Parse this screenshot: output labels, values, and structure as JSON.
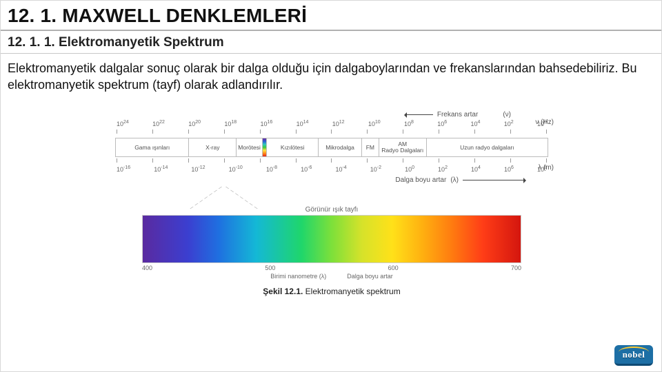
{
  "heading1": "12. 1. MAXWELL DENKLEMLERİ",
  "heading2": "12. 1. 1. Elektromanyetik Spektrum",
  "paragraph": "Elektromanyetik dalgalar sonuç olarak bir dalga olduğu için dalgaboylarından ve frekanslarından bahsedebiliriz. Bu elektromanyetik spektrum (tayf) olarak adlandırılır.",
  "figure": {
    "freq_arrow_label": "Frekans artar",
    "freq_symbol": "(ν)",
    "freq_exponents": [
      "24",
      "22",
      "20",
      "18",
      "16",
      "14",
      "12",
      "10",
      "8",
      "6",
      "4",
      "2",
      "0"
    ],
    "freq_unit": "ν (Hz)",
    "bands": [
      {
        "label": "Gama ışınları",
        "width": 17
      },
      {
        "label": "X-ray",
        "width": 11
      },
      {
        "label": "Morötesi",
        "width": 6
      },
      {
        "label": "",
        "width": 1.0,
        "visible_stripe": true
      },
      {
        "label": "Kızılötesi",
        "width": 12
      },
      {
        "label": "Mikrodalga",
        "width": 10
      },
      {
        "label": "FM",
        "width": 4
      },
      {
        "label": "AM\nRadyo Dalgaları",
        "width": 11
      },
      {
        "label": "Uzun radyo dalgaları",
        "width": 28
      }
    ],
    "lambda_exponents": [
      "-16",
      "-14",
      "-12",
      "-10",
      "-8",
      "-6",
      "-4",
      "-2",
      "0",
      "2",
      "4",
      "6",
      "8"
    ],
    "lambda_unit": "λ (m)",
    "lambda_arrow_label": "Dalga boyu artar",
    "lambda_arrow_symbol": "(λ)",
    "visible_title": "Görünür ışık tayfı",
    "visible_ticks": [
      "400",
      "500",
      "600",
      "700"
    ],
    "visible_sub1": "Birimi nanometre (λ)",
    "visible_sub2": "Dalga boyu artar",
    "caption_bold": "Şekil 12.1.",
    "caption_rest": " Elektromanyetik spektrum",
    "colors": {
      "border": "#bbbbbb",
      "text": "#555555",
      "band_bg": "#ffffff"
    }
  },
  "logo_text": "nobel"
}
